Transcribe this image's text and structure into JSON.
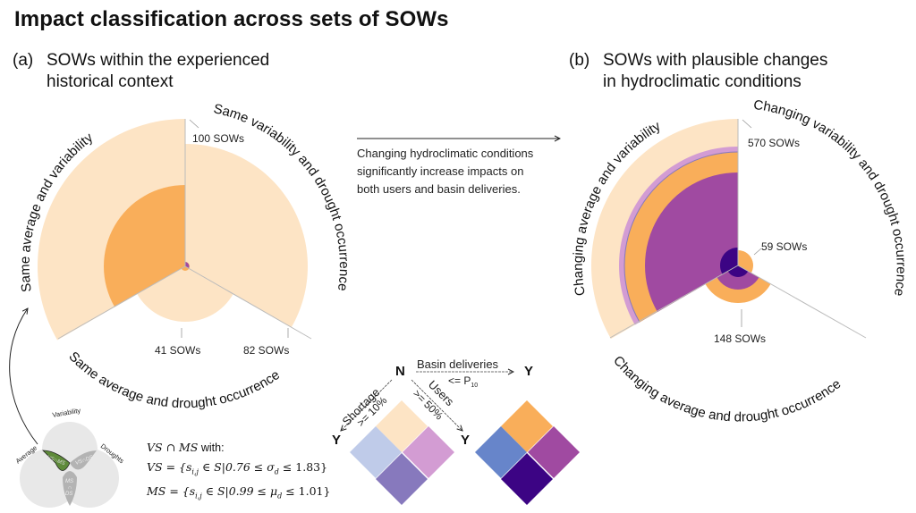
{
  "title": "Impact classification across sets of SOWs",
  "panel_a": {
    "label": "(a)",
    "title_line1": "SOWs within the experienced",
    "title_line2": "historical context",
    "sectors": [
      {
        "name": "Same average and variability",
        "count_label": "100 SOWs",
        "total": 100
      },
      {
        "name": "Same variability and drought occurrence",
        "count_label": "82 SOWs",
        "total": 82
      },
      {
        "name": "Same average and drought occurrence",
        "count_label": "41 SOWs",
        "total": 41
      }
    ]
  },
  "panel_b": {
    "label": "(b)",
    "title_line1": "SOWs with plausible changes",
    "title_line2": "in hydroclimatic conditions",
    "sectors": [
      {
        "name": "Changing average and variability",
        "count_label": "570 SOWs",
        "total": 570
      },
      {
        "name": "Changing variability and drought occurrence",
        "count_label": "59 SOWs",
        "total": 59
      },
      {
        "name": "Changing average and drought occurrence",
        "count_label": "148 SOWs",
        "total": 148
      }
    ]
  },
  "callout": {
    "line1": "Changing hydroclimatic conditions",
    "line2": "significantly increase impacts on",
    "line3": "both users and basin deliveries."
  },
  "legend": {
    "n_label": "N",
    "y_label": "Y",
    "basin_label": "Basin deliveries",
    "basin_threshold": "<= P",
    "basin_sub": "10",
    "shortage_label": "Shortage",
    "shortage_threshold": ">= 10%",
    "users_label": "Users",
    "users_threshold": ">= 50%",
    "colors": {
      "none_light": "#fde4c5",
      "basin_light": "#bfcbe9",
      "users_light": "#d39cd3",
      "both_light": "#8779bd",
      "none_dark": "#f9ae5a",
      "basin_dark": "#6785ca",
      "users_dark": "#a04aa1",
      "both_dark": "#3c0484"
    }
  },
  "venn": {
    "top_label": "Variability",
    "left_label": "Average",
    "right_label": "Droughts",
    "vs_ms": "VS∩MS",
    "vs_ds": "VS∩DS",
    "ms_ds_top": "MS",
    "ms_ds_mid": "∩",
    "ms_ds_bot": "DS",
    "highlight_color": "#5e8a3a"
  },
  "formula": {
    "line1_math": "VS ∩ MS",
    "line1_text": " with:",
    "line2": "VS = {s",
    "line2_sub": "i,j",
    "line2_rest": " ∈ S|0.76 ≤ σ",
    "line2_sub2": "d",
    "line2_end": " ≤ 1.83}",
    "line3": "MS = {s",
    "line3_sub": "i,j",
    "line3_rest": " ∈ S|0.99 ≤ μ",
    "line3_sub2": "d",
    "line3_end": " ≤ 1.01}"
  }
}
